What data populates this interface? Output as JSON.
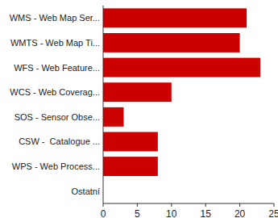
{
  "chart_data": {
    "type": "bar",
    "orientation": "horizontal",
    "categories": [
      "WMS - Web Map Ser...",
      "WMTS - Web Map Ti...",
      "WFS - Web Feature...",
      "WCS - Web Coverag...",
      "SOS - Sensor Obse...",
      "CSW -  Catalogue ...",
      "WPS - Web Process...",
      "Ostatní"
    ],
    "values": [
      21,
      20,
      23,
      10,
      3,
      8,
      8,
      0
    ],
    "color": "#cc0000",
    "xlim": [
      0,
      25
    ],
    "xticks": [
      0,
      5,
      10,
      15,
      20,
      25
    ],
    "grid": false
  }
}
